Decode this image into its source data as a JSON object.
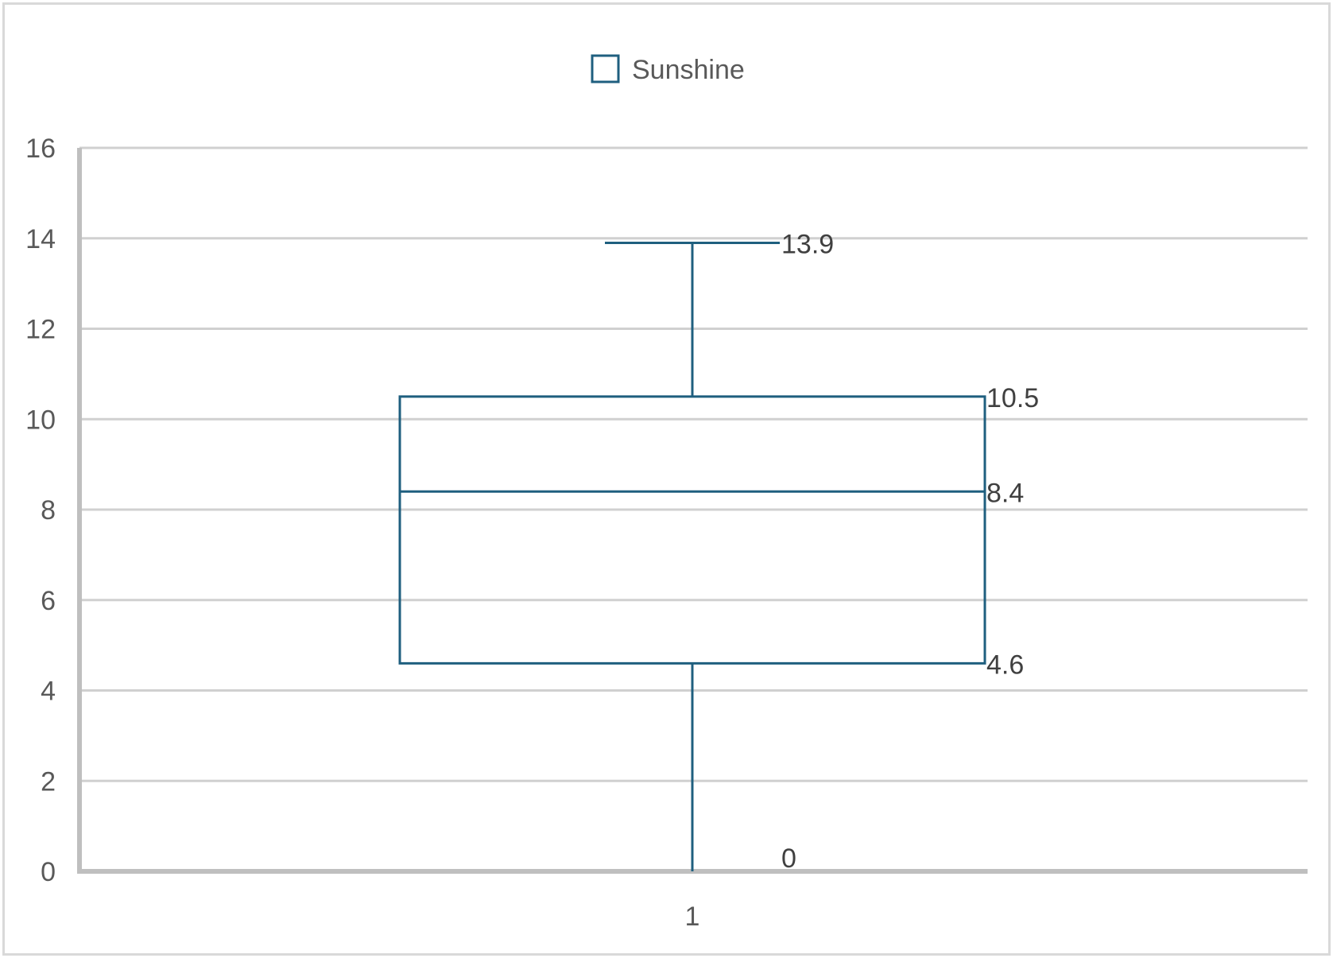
{
  "chart_data": {
    "type": "box",
    "title": "",
    "xlabel": "",
    "ylabel": "",
    "categories": [
      "1"
    ],
    "ylim": [
      0,
      16
    ],
    "yticks": [
      0,
      2,
      4,
      6,
      8,
      10,
      12,
      14,
      16
    ],
    "grid": true,
    "legend": {
      "position": "top-center",
      "entries": [
        "Sunshine"
      ]
    },
    "series": [
      {
        "name": "Sunshine",
        "color": "#1f5f7f",
        "min": 0,
        "q1": 4.6,
        "median": 8.4,
        "q3": 10.5,
        "max": 13.9
      }
    ],
    "data_labels": {
      "max": "13.9",
      "q3": "10.5",
      "median": "8.4",
      "q1": "4.6",
      "min": "0"
    }
  }
}
